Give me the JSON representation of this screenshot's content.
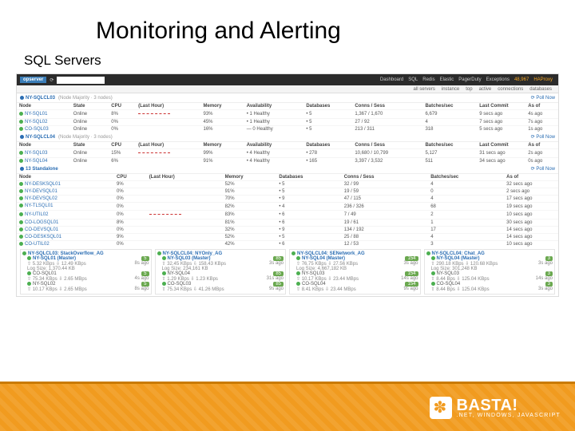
{
  "slide": {
    "title": "Monitoring and Alerting",
    "subtitle": "SQL Servers"
  },
  "topbar": {
    "logo": "opserver",
    "nav": [
      "Dashboard",
      "SQL",
      "Redis",
      "Elastic",
      "PagerDuty",
      "Exceptions"
    ],
    "badge": "48,967",
    "haproxy": "HAProxy"
  },
  "subbar": {
    "items": [
      "all servers",
      "instance",
      "top",
      "active",
      "connections",
      "databases"
    ]
  },
  "groups": [
    {
      "title": "NY-SQLCL03",
      "meta": "(Node Majority · 3 nodes)",
      "poll": "Poll Now",
      "cols": [
        "Node",
        "State",
        "CPU",
        "(Last Hour)",
        "Memory",
        "Availability",
        "Databases",
        "Conns / Sess",
        "Batches/sec",
        "Last Commit",
        "As of"
      ],
      "rows": [
        {
          "dot": "green",
          "name": "NY-SQL01",
          "state": "Online",
          "cpu": "8%",
          "spark": true,
          "mem": "93%",
          "avail": "• 1 Healthy",
          "db": "• 5",
          "conn": "1,367 / 1,670",
          "batch": "6,679",
          "commit": "9 secs ago",
          "asof": "4s ago"
        },
        {
          "dot": "green",
          "name": "NY-SQL02",
          "state": "Online",
          "cpu": "0%",
          "spark": false,
          "mem": "45%",
          "avail": "• 1 Healthy",
          "db": "• 5",
          "conn": "27 / 92",
          "batch": "4",
          "commit": "7 secs ago",
          "asof": "7s ago"
        },
        {
          "dot": "green",
          "name": "CO-SQL03",
          "state": "Online",
          "cpu": "0%",
          "spark": false,
          "mem": "16%",
          "avail": "— 0 Healthy",
          "db": "• 5",
          "conn": "213 / 311",
          "batch": "318",
          "commit": "5 secs ago",
          "asof": "1s ago"
        }
      ]
    },
    {
      "title": "NY-SQLCL04",
      "meta": "(Node Majority · 3 nodes)",
      "poll": "Poll Now",
      "cols": [
        "Node",
        "State",
        "CPU",
        "(Last Hour)",
        "Memory",
        "Availability",
        "Databases",
        "Conns / Sess",
        "Batches/sec",
        "Last Commit",
        "As of"
      ],
      "rows": [
        {
          "dot": "green",
          "name": "NY-SQL03",
          "state": "Online",
          "cpu": "15%",
          "spark": true,
          "mem": "99%",
          "avail": "• 4 Healthy",
          "db": "• 278",
          "conn": "10,680 / 10,799",
          "batch": "5,127",
          "commit": "31 secs ago",
          "asof": "2s ago"
        },
        {
          "dot": "green",
          "name": "NY-SQL04",
          "state": "Online",
          "cpu": "6%",
          "spark": false,
          "mem": "91%",
          "avail": "• 4 Healthy",
          "db": "• 165",
          "conn": "3,397 / 3,532",
          "batch": "511",
          "commit": "34 secs ago",
          "asof": "0s ago"
        }
      ]
    },
    {
      "title": "13 Standalone",
      "meta": "",
      "poll": "Poll Now",
      "cols": [
        "Node",
        "",
        "CPU",
        "(Last Hour)",
        "Memory",
        "Databases",
        "Conns / Sess",
        "Batches/sec",
        "As of"
      ],
      "rows": [
        {
          "dot": "green",
          "name": "NY-DESKSQL01",
          "cpu": "9%",
          "spark": false,
          "mem": "52%",
          "db": "• 5",
          "conn": "32 / 99",
          "batch": "4",
          "asof": "32 secs ago"
        },
        {
          "dot": "green",
          "name": "NY-DEVSQL01",
          "cpu": "0%",
          "spark": false,
          "mem": "91%",
          "db": "• 5",
          "conn": "19 / 59",
          "batch": "0",
          "asof": "2 secs ago"
        },
        {
          "dot": "green",
          "name": "NY-DEVSQL02",
          "cpu": "0%",
          "spark": false,
          "mem": "70%",
          "db": "• 9",
          "conn": "47 / 115",
          "batch": "4",
          "asof": "17 secs ago"
        },
        {
          "dot": "green",
          "name": "NY-TLSQL01",
          "cpu": "0%",
          "spark": false,
          "mem": "82%",
          "db": "• 4",
          "conn": "236 / 326",
          "batch": "68",
          "asof": "19 secs ago"
        },
        {
          "dot": "green",
          "name": "NY-UTIL02",
          "cpu": "0%",
          "spark": true,
          "mem": "83%",
          "db": "• 6",
          "conn": "7 / 49",
          "batch": "2",
          "asof": "10 secs ago"
        },
        {
          "dot": "green",
          "name": "CO-LOGSQL01",
          "cpu": "8%",
          "spark": false,
          "mem": "81%",
          "db": "• 6",
          "conn": "19 / 61",
          "batch": "1",
          "asof": "30 secs ago"
        },
        {
          "dot": "green",
          "name": "CO-DEVSQL01",
          "cpu": "0%",
          "spark": false,
          "mem": "32%",
          "db": "• 9",
          "conn": "134 / 192",
          "batch": "17",
          "asof": "14 secs ago"
        },
        {
          "dot": "green",
          "name": "CO-DESKSQL01",
          "cpu": "9%",
          "spark": false,
          "mem": "52%",
          "db": "• 5",
          "conn": "25 / 88",
          "batch": "4",
          "asof": "14 secs ago"
        },
        {
          "dot": "green",
          "name": "CO-UTIL02",
          "cpu": "0%",
          "spark": false,
          "mem": "42%",
          "db": "• 6",
          "conn": "12 / 53",
          "batch": "3",
          "asof": "10 secs ago"
        }
      ]
    }
  ],
  "ag": [
    {
      "title": "NY-SQLCL03: StackOverflow_AG",
      "primary": {
        "name": "NY-SQL01 (Master)",
        "sent": "5.32 KBps",
        "recv": "12.49 KBps",
        "log": "Log Size: 1,370.44 KB",
        "badge": "5",
        "asof": "8s ago"
      },
      "secondary": [
        {
          "name": "CO-SQL01",
          "sent": "75.34 KBps",
          "recv": "2.65 MBps",
          "badge": "5",
          "asof": "4s ago"
        },
        {
          "name": "NY-SQL02",
          "sent": "10.17 KBps",
          "recv": "2.65 MBps",
          "badge": "5",
          "asof": "8s ago"
        }
      ]
    },
    {
      "title": "NY-SQLCL04: NYOnly_AG",
      "primary": {
        "name": "NY-SQL03 (Master)",
        "sent": "32.45 KBps",
        "recv": "158.43 KBps",
        "log": "Log Size: 234,161 KB",
        "badge": "85",
        "asof": "3s ago"
      },
      "secondary": [
        {
          "name": "NY-SQL04",
          "sent": "1.29 KBps",
          "recv": "1.23 KBps",
          "badge": "85",
          "asof": "31s ago"
        },
        {
          "name": "CO-SQL03",
          "sent": "75.34 KBps",
          "recv": "41.26 MBps",
          "badge": "85",
          "asof": "9s ago"
        }
      ]
    },
    {
      "title": "NY-SQLCL04: SENetwork_AG",
      "primary": {
        "name": "NY-SQL04 (Master)",
        "sent": "76.75 KBps",
        "recv": "27.56 KBps",
        "log": "Log Size: 4,667,182 KB",
        "badge": "154",
        "asof": "3s ago"
      },
      "secondary": [
        {
          "name": "NY-SQL03",
          "sent": "10.17 KBps",
          "recv": "23.44 MBps",
          "badge": "154",
          "asof": "14s ago"
        },
        {
          "name": "CO-SQL04",
          "sent": "8.41 KBps",
          "recv": "23.44 MBps",
          "badge": "154",
          "asof": "9s ago"
        }
      ]
    },
    {
      "title": "NY-SQLCL04: Chat_AG",
      "primary": {
        "name": "NY-SQL04 (Master)",
        "sent": "290.18 KBps",
        "recv": "120.68 KBps",
        "log": "Log Size: 301,248 KB",
        "badge": "3",
        "asof": "3s ago"
      },
      "secondary": [
        {
          "name": "NY-SQL03",
          "sent": "8.44 Bps",
          "recv": "125.04 KBps",
          "badge": "3",
          "asof": "14s ago"
        },
        {
          "name": "CO-SQL04",
          "sent": "8.44 Bps",
          "recv": "125.04 KBps",
          "badge": "3",
          "asof": "3s ago"
        }
      ]
    }
  ],
  "footer": {
    "brand": "BASTA!",
    "tagline": ".NET, WINDOWS, JAVASCRIPT"
  }
}
